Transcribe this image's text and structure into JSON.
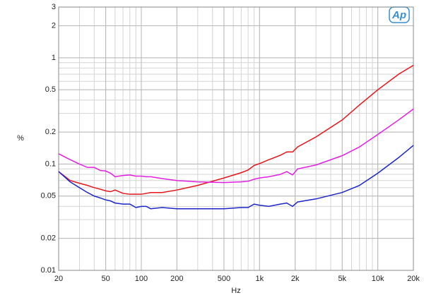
{
  "chart_data": {
    "type": "line",
    "logo": "Ap",
    "y_label": "%",
    "x_label": "Hz",
    "xscale": "log",
    "yscale": "log",
    "grid": true,
    "minor_grid": true,
    "xlim": [
      20,
      20000
    ],
    "ylim": [
      0.01,
      3
    ],
    "xticks": [
      20,
      50,
      100,
      200,
      500,
      {
        "value": 1000,
        "label": "1k"
      },
      {
        "value": 2000,
        "label": "2k"
      },
      {
        "value": 5000,
        "label": "5k"
      },
      {
        "value": 10000,
        "label": "10k"
      },
      {
        "value": 20000,
        "label": "20k"
      }
    ],
    "yticks": [
      0.01,
      0.02,
      0.05,
      0.1,
      0.2,
      0.5,
      1,
      2,
      3
    ],
    "x": [
      20,
      25,
      30,
      35,
      40,
      45,
      50,
      55,
      60,
      70,
      80,
      90,
      100,
      110,
      120,
      150,
      200,
      300,
      500,
      700,
      800,
      900,
      1000,
      1200,
      1500,
      1700,
      1900,
      2100,
      3000,
      5000,
      7000,
      10000,
      15000,
      20000
    ],
    "series": [
      {
        "color": "#e8141a",
        "values": [
          0.085,
          0.07,
          0.066,
          0.063,
          0.06,
          0.058,
          0.056,
          0.055,
          0.057,
          0.053,
          0.052,
          0.052,
          0.052,
          0.053,
          0.054,
          0.054,
          0.057,
          0.063,
          0.074,
          0.083,
          0.088,
          0.097,
          0.101,
          0.11,
          0.121,
          0.13,
          0.13,
          0.145,
          0.18,
          0.26,
          0.36,
          0.5,
          0.7,
          0.85
        ]
      },
      {
        "color": "#e31ee3",
        "values": [
          0.125,
          0.11,
          0.1,
          0.093,
          0.093,
          0.087,
          0.086,
          0.082,
          0.076,
          0.078,
          0.079,
          0.077,
          0.077,
          0.076,
          0.076,
          0.073,
          0.07,
          0.068,
          0.067,
          0.068,
          0.069,
          0.072,
          0.074,
          0.076,
          0.08,
          0.085,
          0.079,
          0.09,
          0.098,
          0.12,
          0.145,
          0.19,
          0.26,
          0.33
        ]
      },
      {
        "color": "#1c25c8",
        "values": [
          0.085,
          0.068,
          0.06,
          0.054,
          0.05,
          0.048,
          0.046,
          0.045,
          0.043,
          0.042,
          0.042,
          0.039,
          0.04,
          0.04,
          0.038,
          0.039,
          0.038,
          0.038,
          0.038,
          0.039,
          0.039,
          0.042,
          0.041,
          0.04,
          0.042,
          0.043,
          0.04,
          0.044,
          0.047,
          0.054,
          0.063,
          0.082,
          0.115,
          0.15
        ]
      }
    ]
  }
}
